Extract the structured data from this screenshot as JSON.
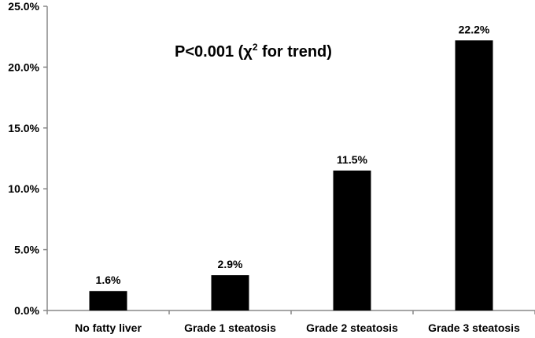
{
  "chart_data": {
    "type": "bar",
    "categories": [
      "No fatty liver",
      "Grade 1 steatosis",
      "Grade 2 steatosis",
      "Grade 3 steatosis"
    ],
    "values": [
      1.6,
      2.9,
      11.5,
      22.2
    ],
    "data_labels": [
      "1.6%",
      "2.9%",
      "11.5%",
      "22.2%"
    ],
    "title": "",
    "xlabel": "",
    "ylabel": "",
    "ylim": [
      0,
      25
    ],
    "y_ticks": [
      0,
      5,
      10,
      15,
      20,
      25
    ],
    "y_tick_labels": [
      "0.0%",
      "5.0%",
      "10.0%",
      "15.0%",
      "20.0%",
      "25.0%"
    ],
    "grid": false,
    "legend": "none",
    "bar_color": "#000000",
    "annotation": {
      "prefix": "P<0.001 (χ",
      "superscript": "2",
      "suffix": " for trend)"
    }
  }
}
